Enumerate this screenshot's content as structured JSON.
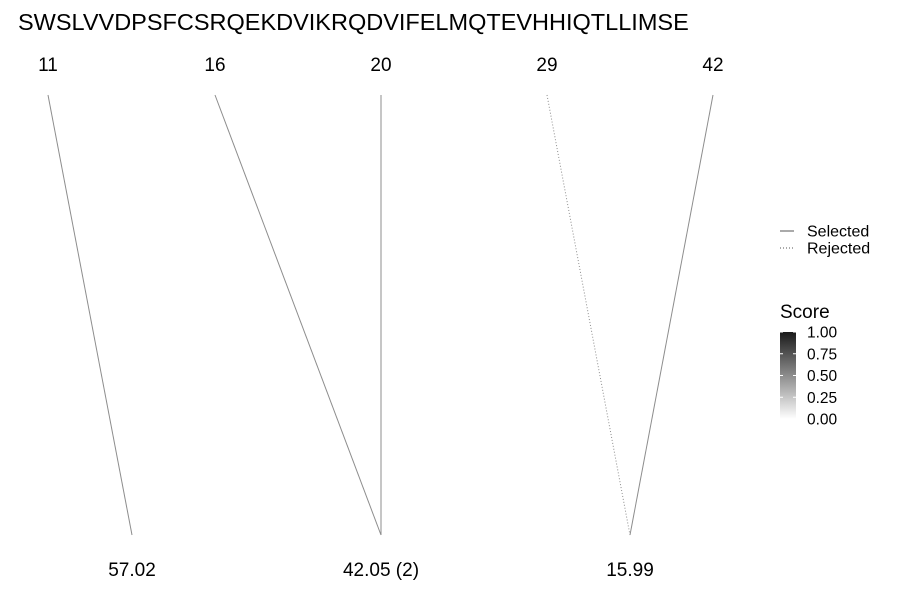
{
  "chart_data": {
    "type": "line",
    "title": "SWSLVVDPSFCSRQEKDVIKRQDVIFELMQTEVHHIQTLLIMSE",
    "top_positions": [
      "11",
      "16",
      "20",
      "29",
      "42"
    ],
    "bottom_labels": [
      "57.02",
      "42.05 (2)",
      "15.99"
    ],
    "series": [
      {
        "name": "Selected",
        "linetype": "solid",
        "score": 0.5,
        "connections": [
          {
            "top": "11",
            "bottom": "57.02"
          },
          {
            "top": "16",
            "bottom": "42.05 (2)"
          },
          {
            "top": "20",
            "bottom": "42.05 (2)"
          },
          {
            "top": "42",
            "bottom": "15.99"
          }
        ]
      },
      {
        "name": "Rejected",
        "linetype": "dotted",
        "score": 0.5,
        "connections": [
          {
            "top": "29",
            "bottom": "15.99"
          }
        ]
      }
    ],
    "legend_linetype": {
      "items": [
        "Selected",
        "Rejected"
      ]
    },
    "legend_score": {
      "title": "Score",
      "ticks": [
        "1.00",
        "0.75",
        "0.50",
        "0.25",
        "0.00"
      ],
      "color_high": "#1a1a1a",
      "color_low": "#ffffff"
    },
    "legend_placement": "right",
    "grid": false
  }
}
